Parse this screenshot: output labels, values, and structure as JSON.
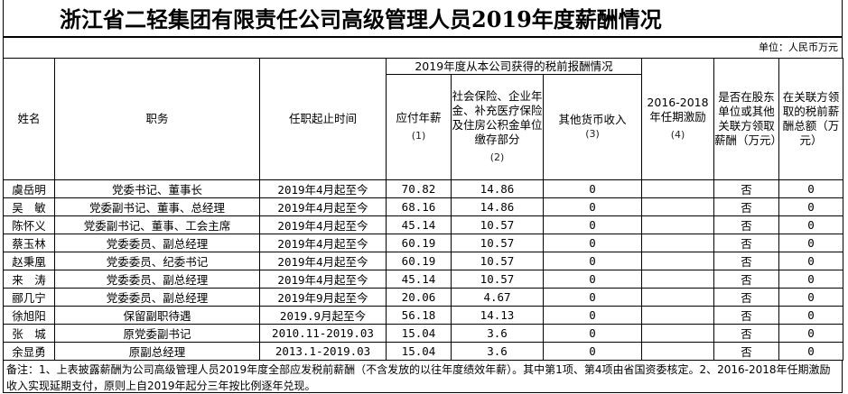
{
  "title": "浙江省二轻集团有限责任公司高级管理人员2019年度薪酬情况",
  "unit": "单位：人民币万元",
  "headers": {
    "name": "姓名",
    "position": "职务",
    "term": "任职起止时间",
    "group": "2019年度从本公司获得的税前报酬情况",
    "salary": "应付年薪",
    "salary_no": "(1)",
    "insurance": "社会保险、企业年金、补充医疗保险及住房公积金单位缴存部分",
    "insurance_no": "(2)",
    "other": "其他货币收入",
    "other_no": "(3)",
    "incentive": "2016-2018年任期激励",
    "incentive_no": "(4)",
    "shareholder": "是否在股东单位或其他关联方领取薪酬（万元）",
    "related": "在关联方领取的税前薪酬总额（万元）"
  },
  "rows": [
    {
      "name": "虞岳明",
      "position": "党委书记、董事长",
      "term": "2019年4月起至今",
      "salary": "70.82",
      "insurance": "14.86",
      "other": "0",
      "incentive": "",
      "shareholder": "否",
      "related": "0"
    },
    {
      "name": "吴　敏",
      "position": "党委副书记、董事、总经理",
      "term": "2019年4月起至今",
      "salary": "68.16",
      "insurance": "14.86",
      "other": "0",
      "incentive": "",
      "shareholder": "否",
      "related": "0"
    },
    {
      "name": "陈怀义",
      "position": "党委副书记、董事、工会主席",
      "term": "2019年4月起至今",
      "salary": "45.14",
      "insurance": "10.57",
      "other": "0",
      "incentive": "",
      "shareholder": "否",
      "related": "0"
    },
    {
      "name": "蔡玉林",
      "position": "党委委员、副总经理",
      "term": "2019年4月起至今",
      "salary": "60.19",
      "insurance": "10.57",
      "other": "0",
      "incentive": "",
      "shareholder": "否",
      "related": "0"
    },
    {
      "name": "赵秉凰",
      "position": "党委委员、纪委书记",
      "term": "2019年4月起至今",
      "salary": "60.19",
      "insurance": "10.57",
      "other": "0",
      "incentive": "",
      "shareholder": "否",
      "related": "0"
    },
    {
      "name": "来　涛",
      "position": "党委委员、副总经理",
      "term": "2019年4月起至今",
      "salary": "45.14",
      "insurance": "10.57",
      "other": "0",
      "incentive": "",
      "shareholder": "否",
      "related": "0"
    },
    {
      "name": "郦几宁",
      "position": "党委委员、副总经理",
      "term": "2019年9月起至今",
      "salary": "20.06",
      "insurance": "4.67",
      "other": "0",
      "incentive": "",
      "shareholder": "否",
      "related": "0"
    },
    {
      "name": "徐旭阳",
      "position": "保留副职待遇",
      "term": "2019.9月起至今",
      "salary": "56.18",
      "insurance": "14.13",
      "other": "0",
      "incentive": "",
      "shareholder": "否",
      "related": "0"
    },
    {
      "name": "张　城",
      "position": "原党委副书记",
      "term": "2010.11-2019.03",
      "salary": "15.04",
      "insurance": "3.6",
      "other": "0",
      "incentive": "",
      "shareholder": "否",
      "related": "0"
    },
    {
      "name": "余显勇",
      "position": "原副总经理",
      "term": "2013.1-2019.03",
      "salary": "15.04",
      "insurance": "3.6",
      "other": "0",
      "incentive": "",
      "shareholder": "否",
      "related": "0"
    }
  ],
  "notes": "备注：1、上表披露薪酬为公司高级管理人员2019年度全部应发税前薪酬（不含发放的以往年度绩效年薪）。其中第1项、第4项由省国资委核定。2、2016-2018年任期激励收入实现延期支付，原则上自2019年起分三年按比例逐年兑现。"
}
